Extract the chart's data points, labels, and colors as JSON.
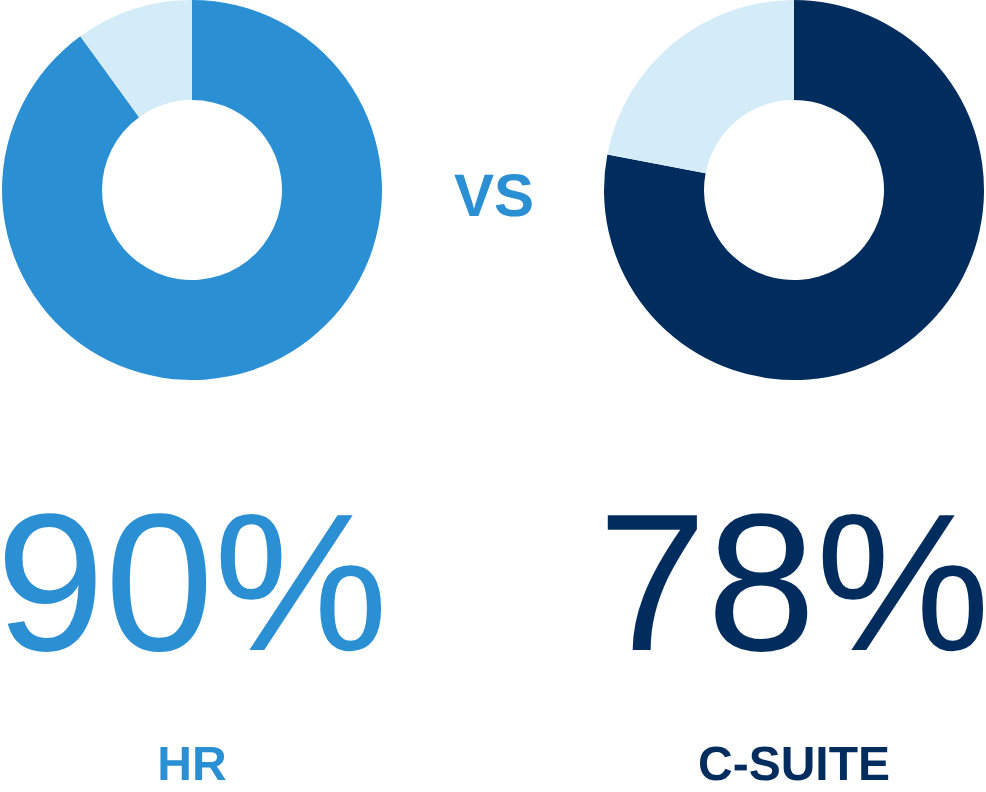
{
  "chart_data": [
    {
      "type": "donut",
      "title": "HR",
      "categories": [
        null,
        null
      ],
      "values": [
        90,
        10
      ],
      "colors": [
        "#2b8fd4",
        "#d3ecf8"
      ],
      "value_labels": [
        "90%",
        null
      ]
    },
    {
      "type": "other",
      "title": "VS"
    },
    {
      "type": "donut",
      "title": "C-SUITE",
      "categories": [
        null,
        null
      ],
      "values": [
        78,
        22
      ],
      "colors": [
        "#002c5e",
        "#d3ecf8"
      ],
      "value_labels": [
        "78%",
        null
      ]
    }
  ]
}
